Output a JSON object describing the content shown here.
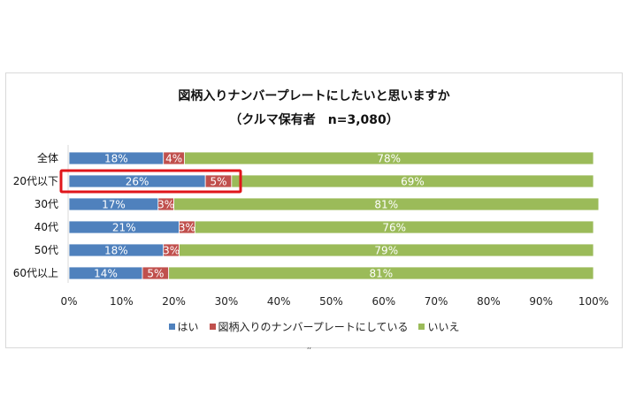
{
  "chart_data": {
    "type": "bar",
    "orientation": "horizontal",
    "stacked": true,
    "title": "図柄入りナンバープレートにしたいと思いますか",
    "subtitle": "（クルマ保有者　n=3,080）",
    "categories": [
      "全体",
      "20代以下",
      "30代",
      "40代",
      "50代",
      "60代以上"
    ],
    "series": [
      {
        "name": "はい",
        "color": "#4f81bd",
        "values": [
          18,
          26,
          17,
          21,
          18,
          14
        ],
        "labels": [
          "18%",
          "26%",
          "17%",
          "21%",
          "18%",
          "14%"
        ]
      },
      {
        "name": "図柄入りのナンバープレートにしている",
        "color": "#c0504d",
        "values": [
          4,
          5,
          3,
          3,
          3,
          5
        ],
        "labels": [
          "4%",
          "5%",
          "3%",
          "3%",
          "3%",
          "5%"
        ]
      },
      {
        "name": "いいえ",
        "color": "#9bbb59",
        "values": [
          78,
          69,
          81,
          76,
          79,
          81
        ],
        "labels": [
          "78%",
          "69%",
          "81%",
          "76%",
          "79%",
          "81%"
        ]
      }
    ],
    "xlim": [
      0,
      100
    ],
    "xticks": [
      "0%",
      "10%",
      "20%",
      "30%",
      "40%",
      "50%",
      "60%",
      "70%",
      "80%",
      "90%",
      "100%"
    ],
    "xlabel": "",
    "ylabel": "",
    "grid": false,
    "legend_position": "bottom",
    "highlight_category": "20代以下",
    "highlight_color": "#e0161b"
  },
  "stray_mark": ",,"
}
